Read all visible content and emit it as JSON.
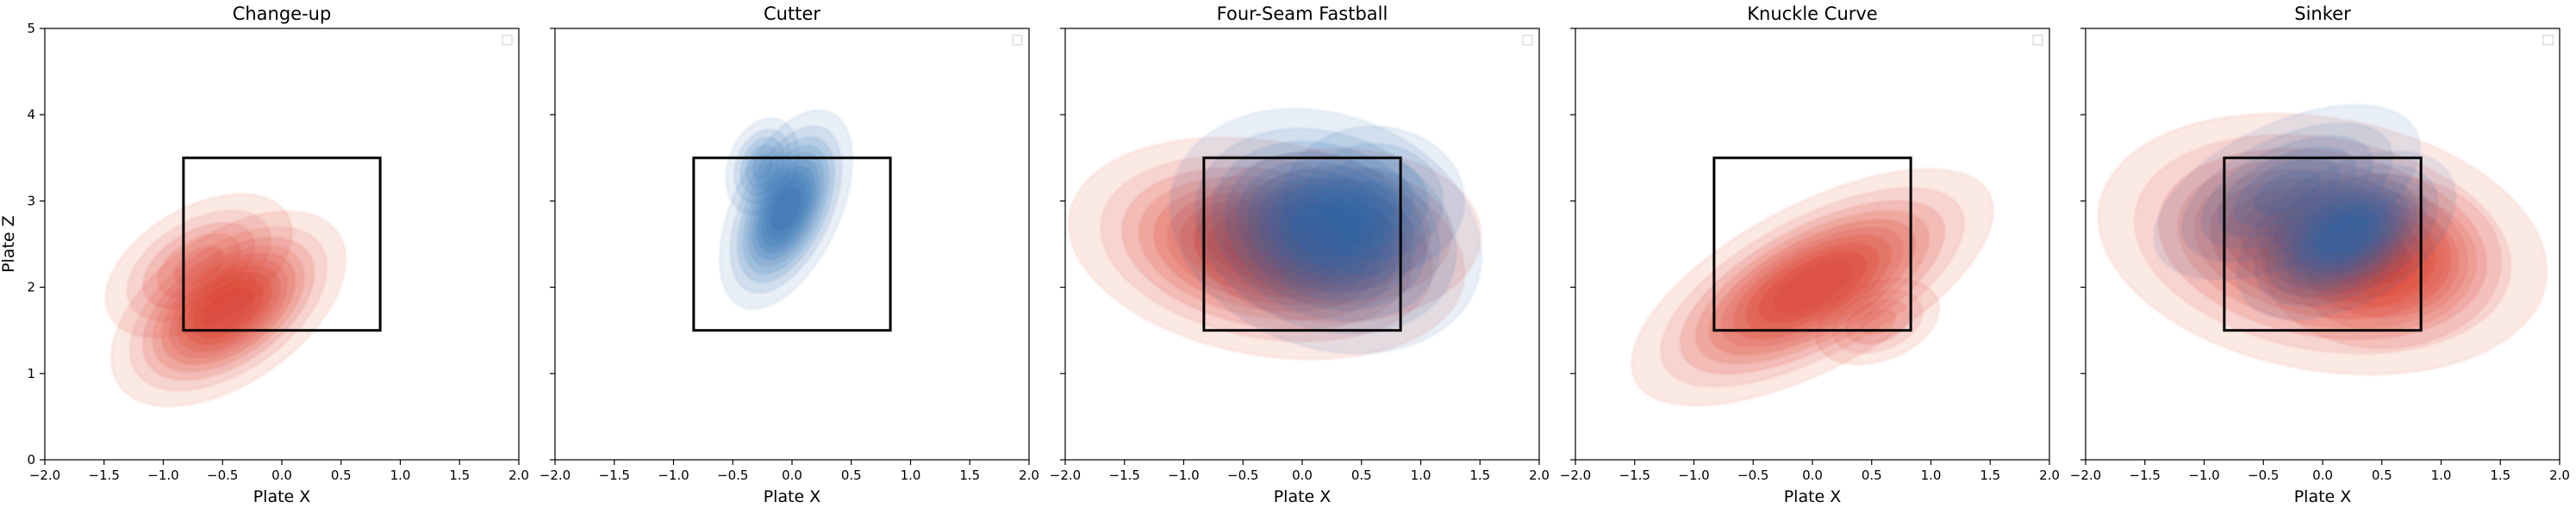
{
  "chart_data": [
    {
      "type": "kde-contour",
      "title": "Change-up",
      "xlabel": "Plate X",
      "ylabel": "Plate Z",
      "xlim": [
        -2.0,
        2.0
      ],
      "ylim": [
        0,
        5
      ],
      "xticks": [
        "−2.0",
        "−1.5",
        "−1.0",
        "−0.5",
        "0.0",
        "0.5",
        "1.0",
        "1.5",
        "2.0"
      ],
      "yticks": [
        "0",
        "1",
        "2",
        "3",
        "4",
        "5"
      ],
      "strike_zone": {
        "x": [
          -0.83,
          0.83
        ],
        "z": [
          1.5,
          3.5
        ]
      },
      "legend": "top-right (empty)",
      "series": [
        {
          "color": "#d7301f",
          "blobs": [
            {
              "cx": -0.45,
              "cz": 1.75,
              "sx": 0.5,
              "sz": 0.38,
              "rot": -35,
              "w": 1.0
            },
            {
              "cx": -0.7,
              "cz": 2.25,
              "sx": 0.45,
              "sz": 0.35,
              "rot": -30,
              "w": 0.5
            }
          ]
        }
      ]
    },
    {
      "type": "kde-contour",
      "title": "Cutter",
      "xlabel": "Plate X",
      "ylabel": "",
      "xlim": [
        -2.0,
        2.0
      ],
      "ylim": [
        0,
        5
      ],
      "xticks": [
        "−2.0",
        "−1.5",
        "−1.0",
        "−0.5",
        "0.0",
        "0.5",
        "1.0",
        "1.5",
        "2.0"
      ],
      "yticks": [],
      "strike_zone": {
        "x": [
          -0.83,
          0.83
        ],
        "z": [
          1.5,
          3.5
        ]
      },
      "legend": "top-right (empty)",
      "series": [
        {
          "color": "#2166ac",
          "blobs": [
            {
              "cx": -0.05,
              "cz": 2.9,
              "sx": 0.2,
              "sz": 0.55,
              "rot": 25,
              "w": 1.0
            },
            {
              "cx": -0.25,
              "cz": 3.4,
              "sx": 0.15,
              "sz": 0.3,
              "rot": 20,
              "w": 0.5
            }
          ]
        }
      ]
    },
    {
      "type": "kde-contour",
      "title": "Four-Seam Fastball",
      "xlabel": "Plate X",
      "ylabel": "",
      "xlim": [
        -2.0,
        2.0
      ],
      "ylim": [
        0,
        5
      ],
      "xticks": [
        "−2.0",
        "−1.5",
        "−1.0",
        "−0.5",
        "0.0",
        "0.5",
        "1.0",
        "1.5",
        "2.0"
      ],
      "yticks": [],
      "strike_zone": {
        "x": [
          -0.83,
          0.83
        ],
        "z": [
          1.5,
          3.5
        ]
      },
      "legend": "top-right (empty)",
      "series": [
        {
          "color": "#d7301f",
          "blobs": [
            {
              "cx": -0.3,
              "cz": 2.45,
              "sx": 0.75,
              "sz": 0.55,
              "rot": 10,
              "w": 1.0
            },
            {
              "cx": 0.3,
              "cz": 2.6,
              "sx": 0.6,
              "sz": 0.5,
              "rot": 0,
              "w": 0.6
            }
          ]
        },
        {
          "color": "#2166ac",
          "blobs": [
            {
              "cx": 0.2,
              "cz": 2.65,
              "sx": 0.6,
              "sz": 0.6,
              "rot": 20,
              "w": 1.0
            },
            {
              "cx": 0.6,
              "cz": 3.0,
              "sx": 0.4,
              "sz": 0.45,
              "rot": 0,
              "w": 0.5
            }
          ]
        }
      ]
    },
    {
      "type": "kde-contour",
      "title": "Knuckle Curve",
      "xlabel": "Plate X",
      "ylabel": "",
      "xlim": [
        -2.0,
        2.0
      ],
      "ylim": [
        0,
        5
      ],
      "xticks": [
        "−2.0",
        "−1.5",
        "−1.0",
        "−0.5",
        "0.0",
        "0.5",
        "1.0",
        "1.5",
        "2.0"
      ],
      "yticks": [],
      "strike_zone": {
        "x": [
          -0.83,
          0.83
        ],
        "z": [
          1.5,
          3.5
        ]
      },
      "legend": "top-right (empty)",
      "series": [
        {
          "color": "#d7301f",
          "blobs": [
            {
              "cx": 0.0,
              "cz": 2.0,
              "sx": 0.75,
              "sz": 0.42,
              "rot": -28,
              "w": 1.0
            },
            {
              "cx": 0.55,
              "cz": 1.6,
              "sx": 0.3,
              "sz": 0.25,
              "rot": -20,
              "w": 0.4
            }
          ]
        }
      ]
    },
    {
      "type": "kde-contour",
      "title": "Sinker",
      "xlabel": "Plate X",
      "ylabel": "",
      "xlim": [
        -2.0,
        2.0
      ],
      "ylim": [
        0,
        5
      ],
      "xticks": [
        "−2.0",
        "−1.5",
        "−1.0",
        "−0.5",
        "0.0",
        "0.5",
        "1.0",
        "1.5",
        "2.0"
      ],
      "yticks": [],
      "strike_zone": {
        "x": [
          -0.83,
          0.83
        ],
        "z": [
          1.5,
          3.5
        ]
      },
      "legend": "top-right (empty)",
      "series": [
        {
          "color": "#d7301f",
          "blobs": [
            {
              "cx": 0.0,
              "cz": 2.5,
              "sx": 0.85,
              "sz": 0.65,
              "rot": 10,
              "w": 1.0
            },
            {
              "cx": 0.5,
              "cz": 2.3,
              "sx": 0.5,
              "sz": 0.5,
              "rot": 0,
              "w": 0.6
            }
          ]
        },
        {
          "color": "#2166ac",
          "blobs": [
            {
              "cx": 0.2,
              "cz": 2.6,
              "sx": 0.45,
              "sz": 0.35,
              "rot": -30,
              "w": 1.0
            },
            {
              "cx": -0.3,
              "cz": 3.1,
              "sx": 0.6,
              "sz": 0.4,
              "rot": -25,
              "w": 0.6
            }
          ]
        }
      ]
    }
  ]
}
